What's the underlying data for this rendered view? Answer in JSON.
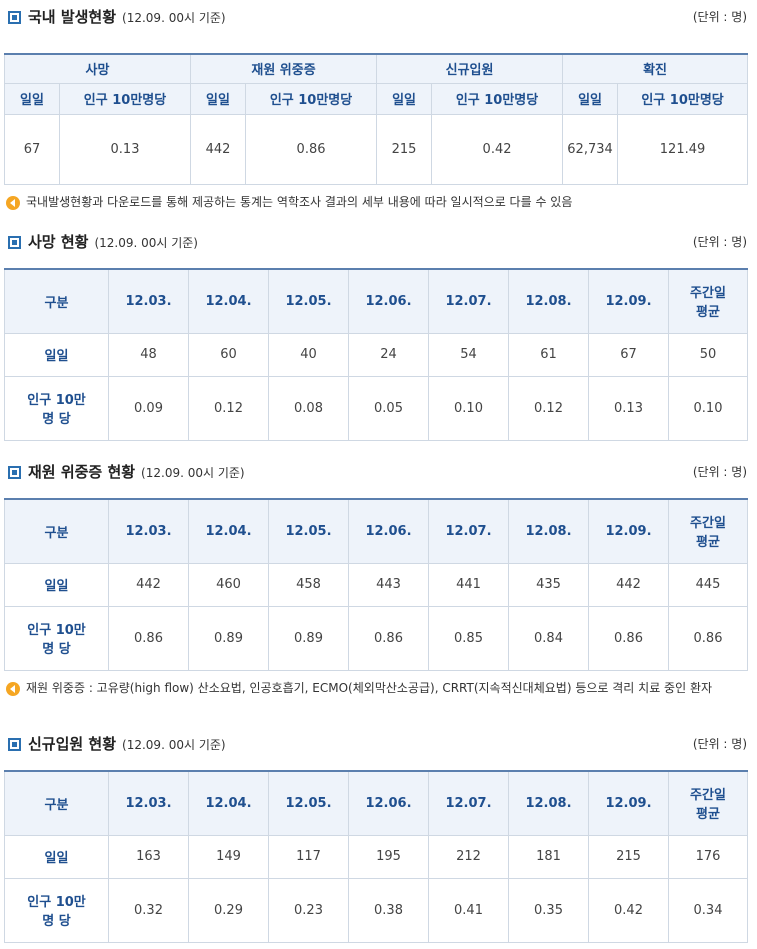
{
  "domestic": {
    "title": "국내 발생현황",
    "basis": "(12.09. 00시 기준)",
    "unit": "(단위 : 명)",
    "groups": [
      "사망",
      "재원 위중증",
      "신규입원",
      "확진"
    ],
    "sub_daily": "일일",
    "sub_per": "인구 10만명당",
    "values": [
      {
        "daily": "67",
        "per": "0.13"
      },
      {
        "daily": "442",
        "per": "0.86"
      },
      {
        "daily": "215",
        "per": "0.42"
      },
      {
        "daily": "62,734",
        "per": "121.49"
      }
    ]
  },
  "note1": "국내발생현황과 다운로드를 통해 제공하는 통계는 역학조사 결과의 세부 내용에 따라 일시적으로 다를 수 있음",
  "deaths": {
    "title": "사망 현황",
    "basis": "(12.09. 00시 기준)",
    "unit": "(단위 : 명)",
    "col0": "구분",
    "dates": [
      "12.03.",
      "12.04.",
      "12.05.",
      "12.06.",
      "12.07.",
      "12.08.",
      "12.09."
    ],
    "avg_line1": "주간일",
    "avg_line2": "평균",
    "row1_label": "일일",
    "row1": [
      "48",
      "60",
      "40",
      "24",
      "54",
      "61",
      "67",
      "50"
    ],
    "row2_label1": "인구 10만",
    "row2_label2": "명 당",
    "row2": [
      "0.09",
      "0.12",
      "0.08",
      "0.05",
      "0.10",
      "0.12",
      "0.13",
      "0.10"
    ]
  },
  "severe": {
    "title": "재원 위중증 현황",
    "basis": "(12.09. 00시 기준)",
    "unit": "(단위 : 명)",
    "col0": "구분",
    "dates": [
      "12.03.",
      "12.04.",
      "12.05.",
      "12.06.",
      "12.07.",
      "12.08.",
      "12.09."
    ],
    "avg_line1": "주간일",
    "avg_line2": "평균",
    "row1_label": "일일",
    "row1": [
      "442",
      "460",
      "458",
      "443",
      "441",
      "435",
      "442",
      "445"
    ],
    "row2_label1": "인구 10만",
    "row2_label2": "명 당",
    "row2": [
      "0.86",
      "0.89",
      "0.89",
      "0.86",
      "0.85",
      "0.84",
      "0.86",
      "0.86"
    ]
  },
  "note2": "재원 위중증 : 고유량(high flow) 산소요법, 인공호흡기, ECMO(체외막산소공급), CRRT(지속적신대체요법) 등으로 격리 치료 중인 환자",
  "admissions": {
    "title": "신규입원 현황",
    "basis": "(12.09. 00시 기준)",
    "unit": "(단위 : 명)",
    "col0": "구분",
    "dates": [
      "12.03.",
      "12.04.",
      "12.05.",
      "12.06.",
      "12.07.",
      "12.08.",
      "12.09."
    ],
    "avg_line1": "주간일",
    "avg_line2": "평균",
    "row1_label": "일일",
    "row1": [
      "163",
      "149",
      "117",
      "195",
      "212",
      "181",
      "215",
      "176"
    ],
    "row2_label1": "인구 10만",
    "row2_label2": "명 당",
    "row2": [
      "0.32",
      "0.29",
      "0.23",
      "0.38",
      "0.41",
      "0.35",
      "0.42",
      "0.34"
    ]
  }
}
